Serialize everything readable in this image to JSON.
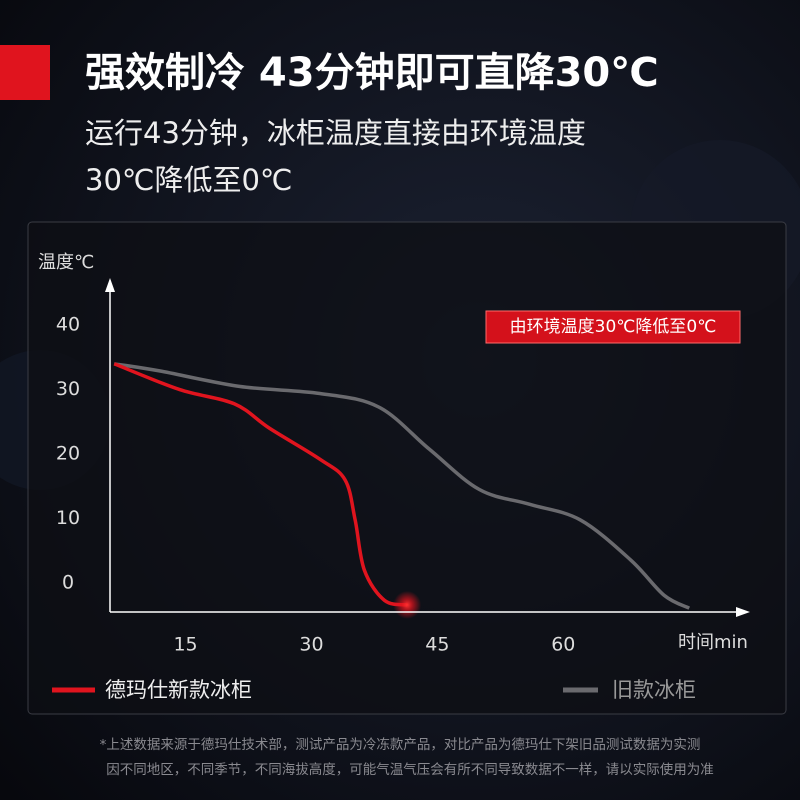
{
  "header": {
    "title": "强效制冷 43分钟即可直降30℃",
    "subtitle_lines": [
      "运行43分钟，冰柜温度直接由环境温度",
      "30℃降低至0℃"
    ]
  },
  "chart_data": {
    "type": "line",
    "y_label": "温度℃",
    "x_label": "时间min",
    "annotation": "由环境温度30℃降低至0℃",
    "xlim": [
      6,
      82
    ],
    "ylim": [
      -4.5,
      47
    ],
    "xticks": [
      15,
      30,
      45,
      60
    ],
    "yticks": [
      0,
      10,
      20,
      30,
      40
    ],
    "series": [
      {
        "name": "德玛仕新款冰柜",
        "color": "#e0141e",
        "x": [
          6.5,
          14.3,
          20.8,
          25,
          31,
          34,
          35.2,
          36.3,
          38.7,
          41.4
        ],
        "values": [
          34,
          30,
          27.8,
          24,
          19.2,
          16,
          9.8,
          2,
          -2.7,
          -3.4
        ]
      },
      {
        "name": "旧款冰柜",
        "color": "#6a6a6e",
        "x": [
          6.5,
          11.9,
          21.4,
          31,
          38,
          44,
          50,
          56,
          62,
          68,
          72,
          75
        ],
        "values": [
          34,
          32.9,
          30.5,
          29.4,
          27.3,
          20.8,
          14.5,
          12.2,
          9.8,
          3.6,
          -1.9,
          -3.9
        ]
      }
    ]
  },
  "footnote": [
    "*上述数据来源于德玛仕技术部，测试产品为冷冻款产品，对比产品为德玛仕下架旧品测试数据为实测",
    "因不同地区，不同季节，不同海拔高度，可能气温气压会有所不同导致数据不一样，请以实际使用为准"
  ]
}
